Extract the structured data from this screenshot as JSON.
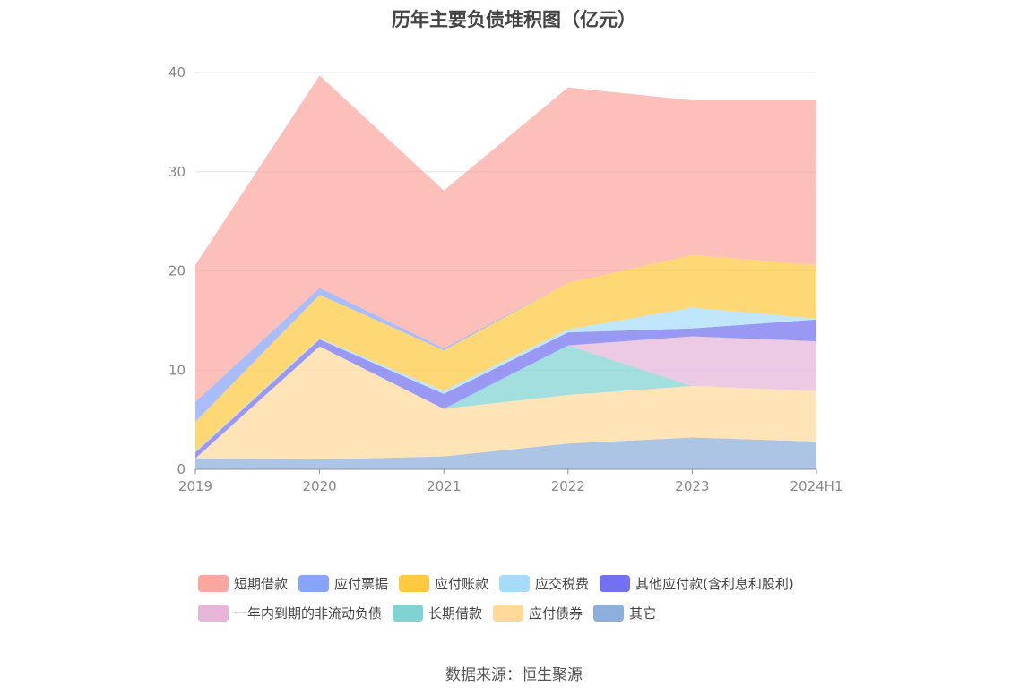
{
  "chart_data": {
    "type": "area",
    "stacked": true,
    "title": "历年主要负债堆积图（亿元）",
    "xlabel": "",
    "ylabel": "",
    "categories": [
      "2019",
      "2020",
      "2021",
      "2022",
      "2023",
      "2024H1"
    ],
    "ylim": [
      0,
      40
    ],
    "yticks": [
      0,
      10,
      20,
      30,
      40
    ],
    "grid": true,
    "legend_position": "bottom",
    "series": [
      {
        "name": "其它",
        "color": "#8eaedb",
        "values": [
          1.1,
          1.0,
          1.3,
          2.6,
          3.2,
          2.8
        ]
      },
      {
        "name": "应付债券",
        "color": "#fed99a",
        "values": [
          0.0,
          11.4,
          4.8,
          4.9,
          5.2,
          5.1
        ]
      },
      {
        "name": "长期借款",
        "color": "#7fd3d3",
        "values": [
          0.0,
          0.0,
          0.0,
          5.0,
          0.0,
          0.0
        ]
      },
      {
        "name": "一年内到期的非流动负债",
        "color": "#e6b6d9",
        "values": [
          0.0,
          0.0,
          0.0,
          0.0,
          5.0,
          5.0
        ]
      },
      {
        "name": "其他应付款(含利息和股利)",
        "color": "#7272f0",
        "values": [
          0.6,
          0.7,
          1.5,
          1.3,
          0.8,
          2.2
        ]
      },
      {
        "name": "应交税费",
        "color": "#a6dcf9",
        "values": [
          0.1,
          0.1,
          0.3,
          0.3,
          2.1,
          0.1
        ]
      },
      {
        "name": "应付账款",
        "color": "#fdc940",
        "values": [
          3.0,
          4.4,
          4.1,
          4.7,
          5.3,
          5.4
        ]
      },
      {
        "name": "应付票据",
        "color": "#86a4f8",
        "values": [
          2.0,
          0.7,
          0.2,
          0.0,
          0.0,
          0.0
        ]
      },
      {
        "name": "短期借款",
        "color": "#fba69f",
        "values": [
          13.8,
          21.4,
          15.9,
          19.7,
          15.6,
          16.6
        ]
      }
    ]
  },
  "legend_rows": [
    [
      {
        "name": "短期借款",
        "color": "#fba69f"
      },
      {
        "name": "应付票据",
        "color": "#86a4f8"
      },
      {
        "name": "应付账款",
        "color": "#fdc940"
      },
      {
        "name": "应交税费",
        "color": "#a6dcf9"
      },
      {
        "name": "其他应付款(含利息和股利)",
        "color": "#7272f0"
      }
    ],
    [
      {
        "name": "一年内到期的非流动负债",
        "color": "#e6b6d9"
      },
      {
        "name": "长期借款",
        "color": "#7fd3d3"
      },
      {
        "name": "应付债券",
        "color": "#fed99a"
      },
      {
        "name": "其它",
        "color": "#8eaedb"
      }
    ]
  ],
  "source": "数据来源：恒生聚源"
}
